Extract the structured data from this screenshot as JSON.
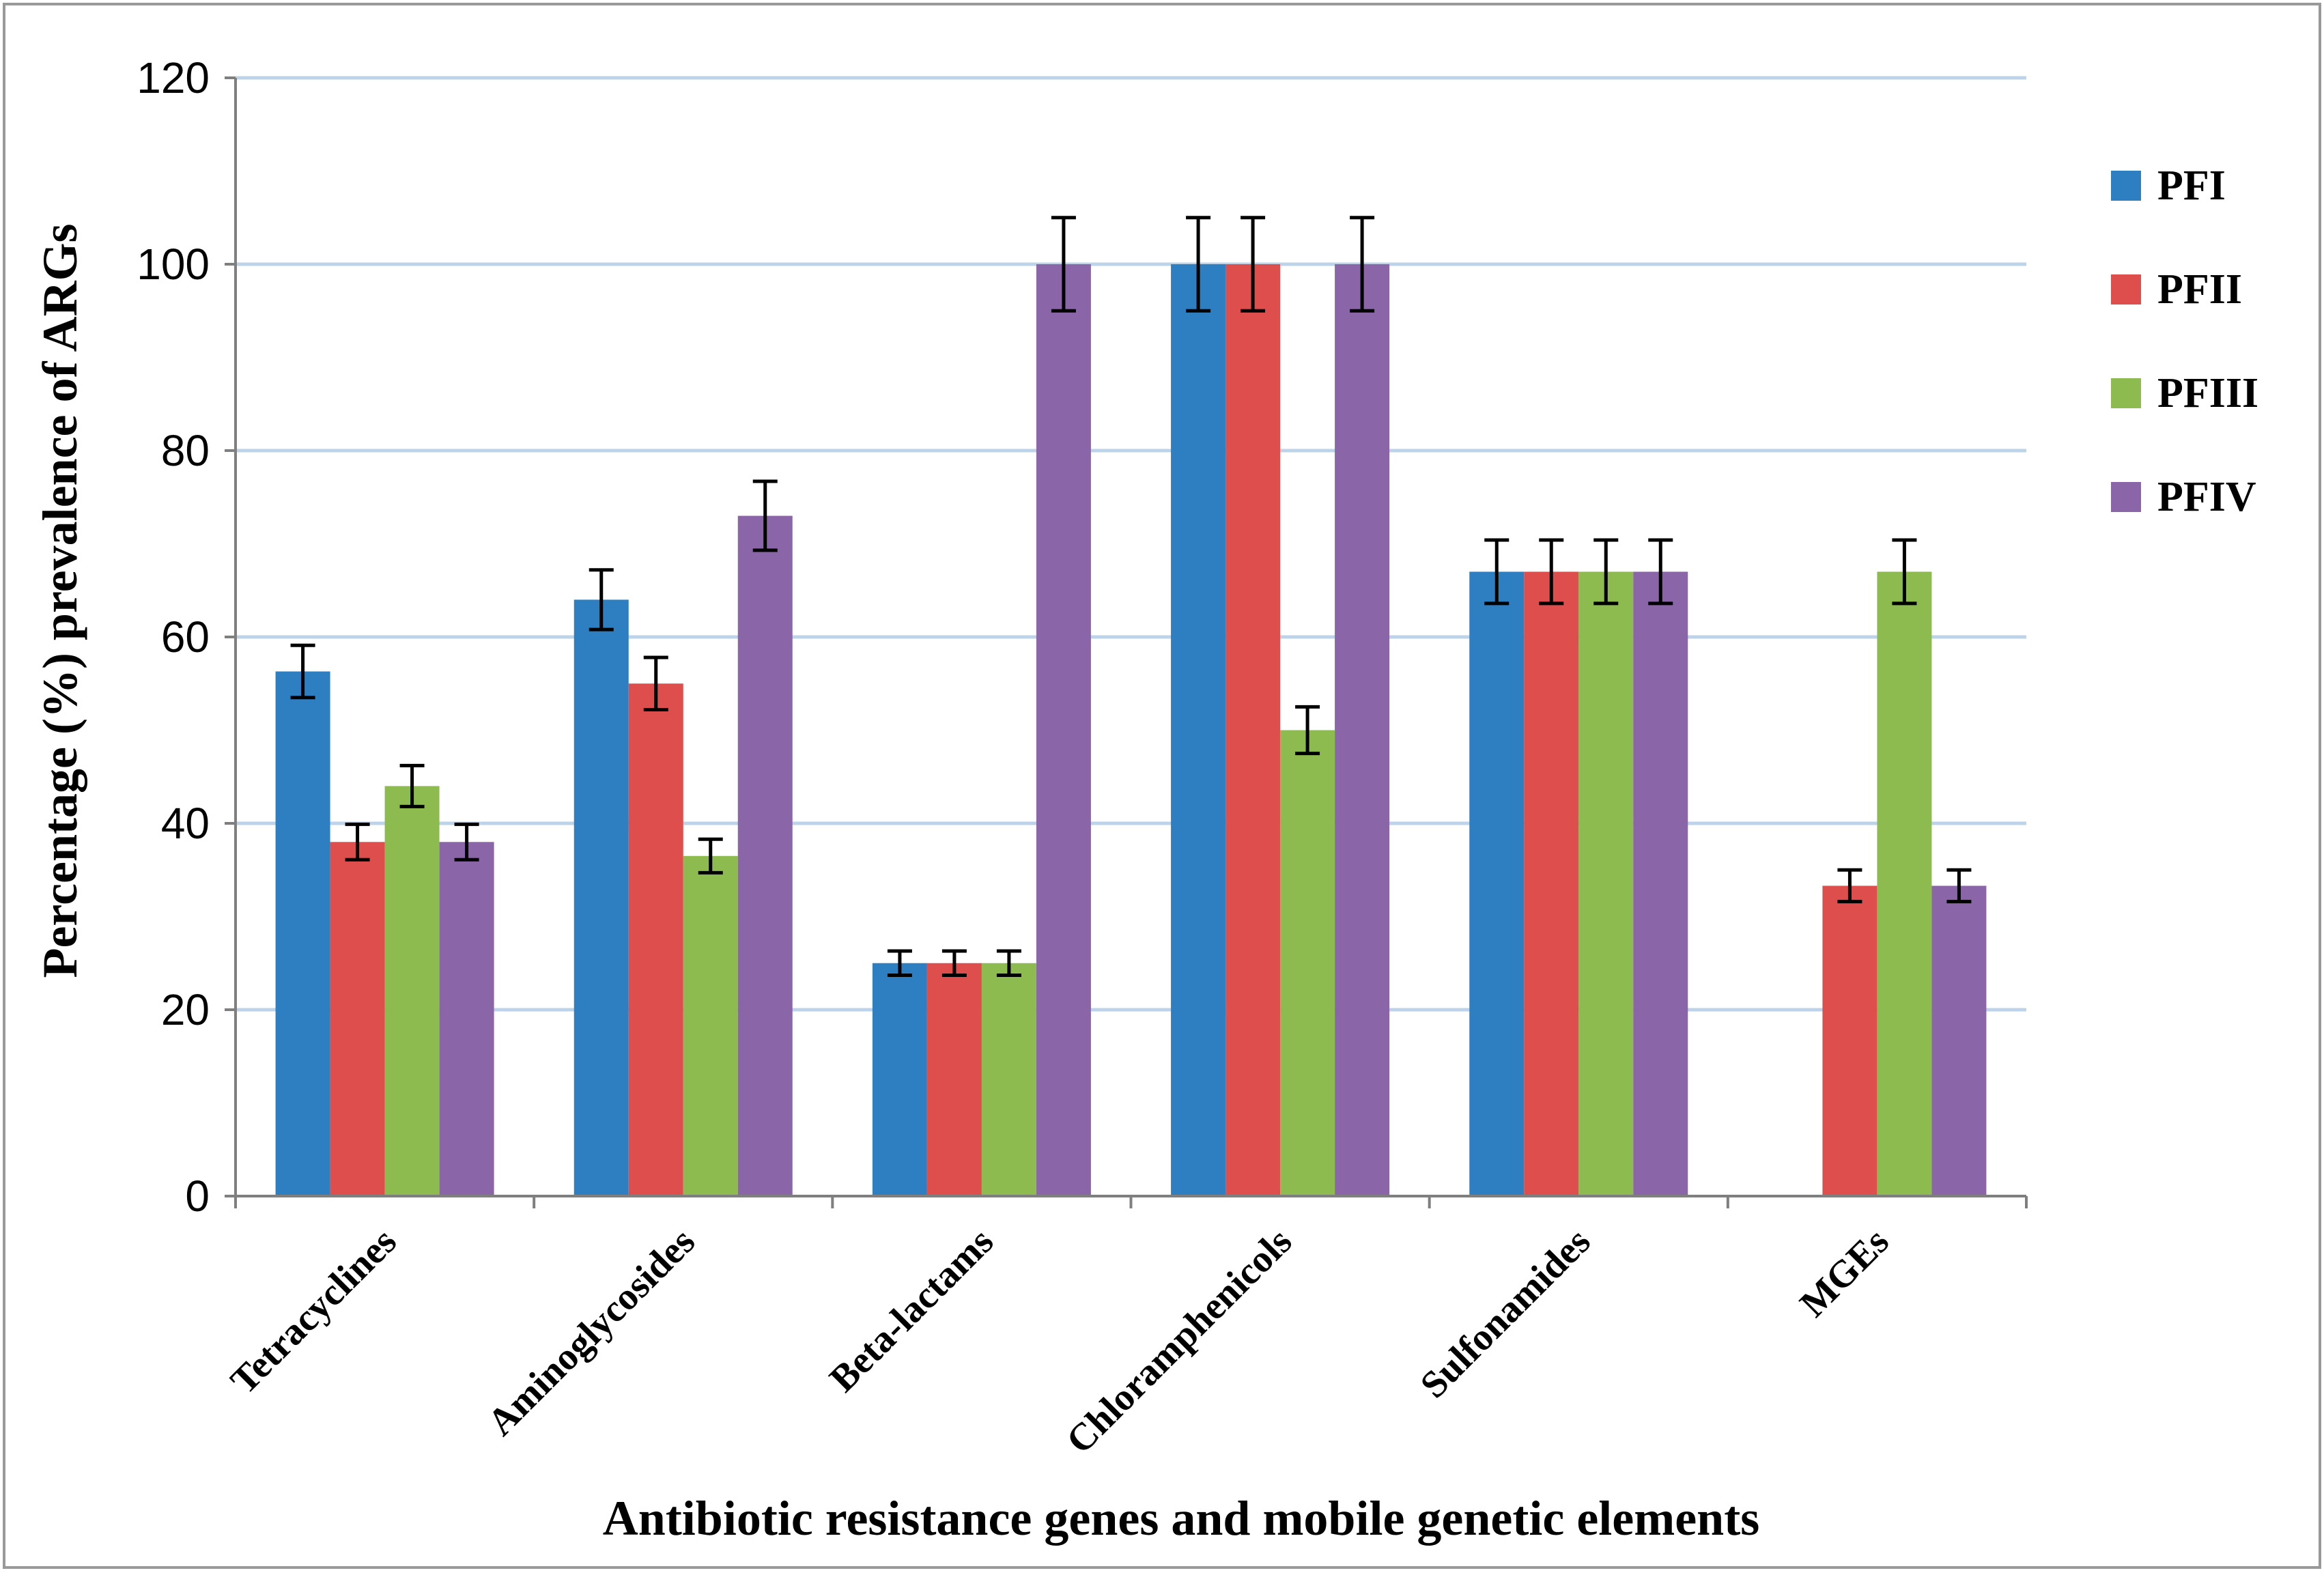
{
  "chart_data": {
    "type": "bar",
    "title": "",
    "xlabel": "Antibiotic resistance genes and mobile genetic elements",
    "ylabel": "Percentage (%) prevalence of ARGs",
    "ylim": [
      0,
      120
    ],
    "yticks": [
      0,
      20,
      40,
      60,
      80,
      100,
      120
    ],
    "grid": true,
    "legend_position": "right",
    "categories": [
      "Tetracyclines",
      "Aminoglycosides",
      "Beta-lactams",
      "Chloramphenicols",
      "Sulfonamides",
      "MGEs"
    ],
    "series": [
      {
        "name": "PFI",
        "color": "#2E7FC1",
        "values": [
          56.3,
          64,
          25,
          100,
          67,
          null
        ],
        "errors": [
          2.8,
          3.2,
          1.3,
          5,
          3.4,
          null
        ]
      },
      {
        "name": "PFII",
        "color": "#DE4E4C",
        "values": [
          38,
          55,
          25,
          100,
          67,
          33.3
        ],
        "errors": [
          1.9,
          2.8,
          1.3,
          5,
          3.4,
          1.7
        ]
      },
      {
        "name": "PFIII",
        "color": "#8EBB4F",
        "values": [
          44,
          36.5,
          25,
          50,
          67,
          67
        ],
        "errors": [
          2.2,
          1.8,
          1.3,
          2.5,
          3.4,
          3.4
        ]
      },
      {
        "name": "PFIV",
        "color": "#8A66A8",
        "values": [
          38,
          73,
          100,
          100,
          67,
          33.3
        ],
        "errors": [
          1.9,
          3.7,
          5,
          5,
          3.4,
          1.7
        ]
      }
    ]
  }
}
